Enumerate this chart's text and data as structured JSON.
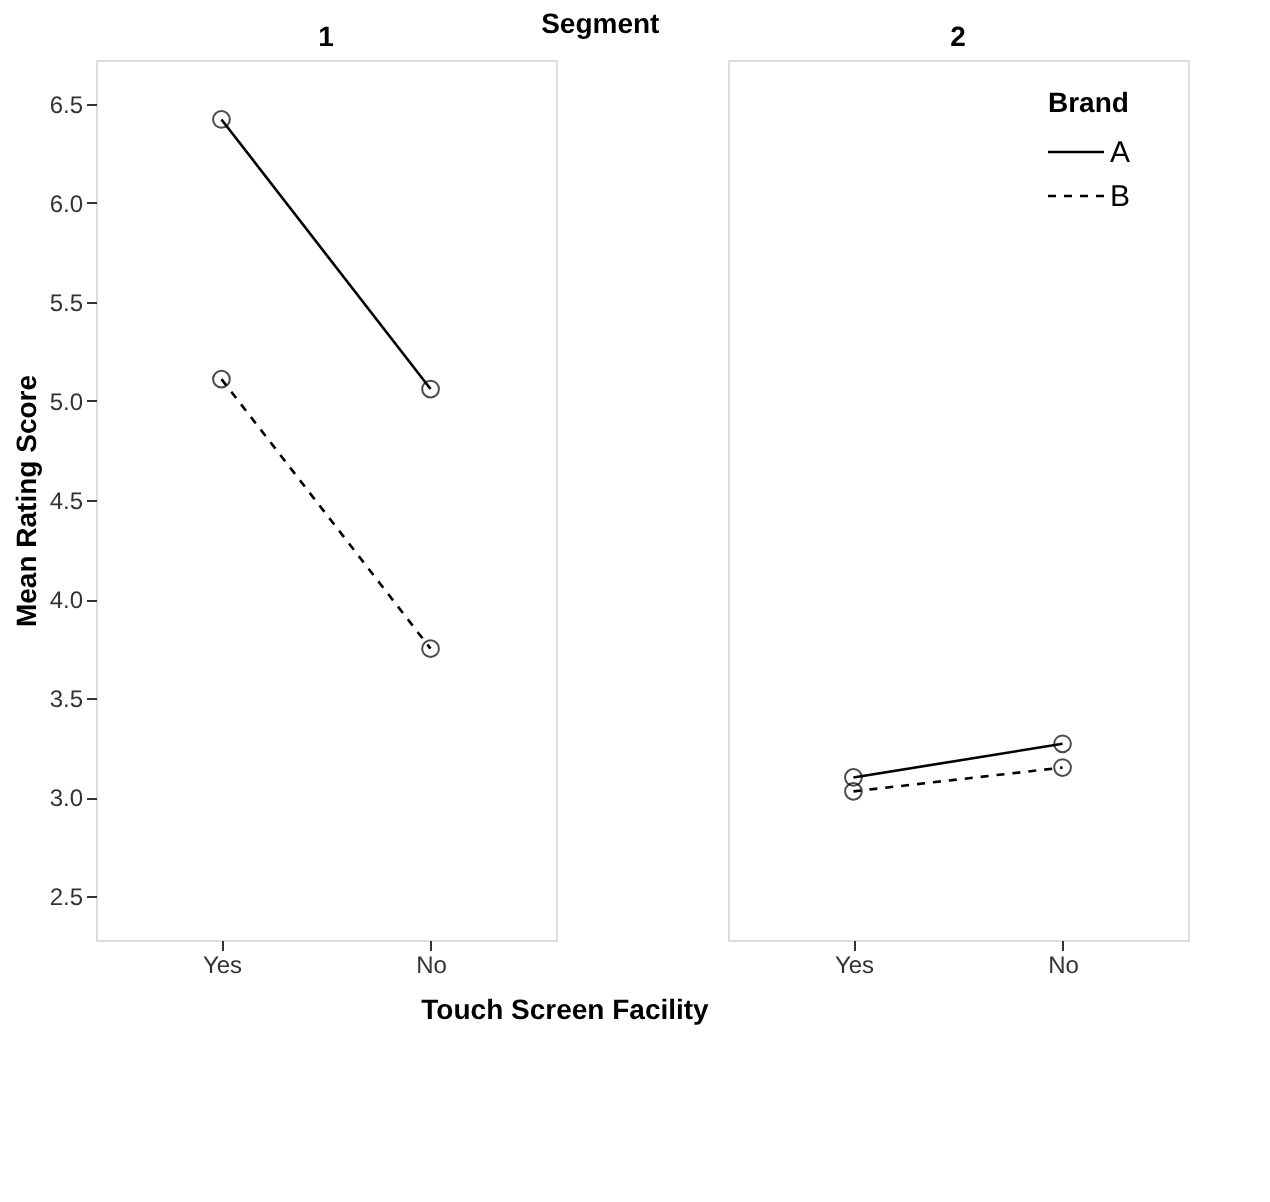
{
  "chart_data": [
    {
      "type": "line",
      "title": "1",
      "annotations": [
        "Segment"
      ],
      "xlabel": "Touch Screen Facility",
      "ylabel": "Mean Rating Score",
      "categories": [
        "Yes",
        "No"
      ],
      "ylim": [
        2.28,
        6.72
      ],
      "yticks": [
        2.5,
        {
          "value": 3,
          "label": "3.0"
        },
        3.5,
        {
          "value": 4,
          "label": "4.0"
        },
        4.5,
        {
          "value": 5,
          "label": "5.0"
        },
        5.5,
        {
          "value": 6,
          "label": "6.0"
        },
        6.5
      ],
      "grid": false,
      "marker": "circle",
      "series": [
        {
          "color": "#000000",
          "line_style": "solid",
          "values": [
            6.42,
            5.06
          ]
        },
        {
          "color": "#000000",
          "line_style": "dashed",
          "values": [
            5.11,
            3.75
          ]
        }
      ]
    },
    {
      "type": "line",
      "title": "2",
      "legend_title": "Brand",
      "categories": [
        "Yes",
        "No"
      ],
      "ylim": [
        2.28,
        6.72
      ],
      "tick_labels": "x",
      "grid": false,
      "legend": "top right",
      "marker": "circle",
      "series": [
        {
          "name": "A",
          "color": "#000000",
          "line_style": "solid",
          "values": [
            3.1,
            3.27
          ]
        },
        {
          "name": "B",
          "color": "#000000",
          "line_style": "dashed",
          "values": [
            3.03,
            3.15
          ]
        }
      ]
    }
  ]
}
